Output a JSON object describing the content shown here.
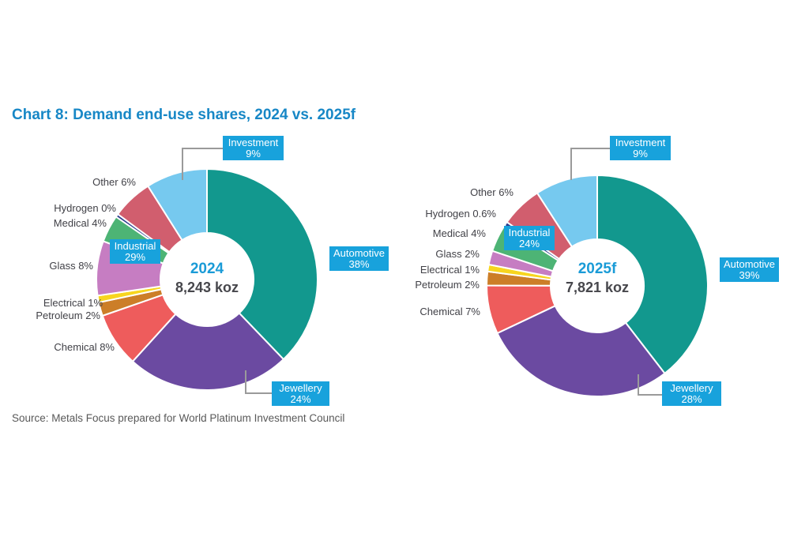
{
  "title": "Chart 8: Demand end-use shares, 2024 vs. 2025f",
  "source": "Source: Metals Focus prepared for World Platinum Investment Council",
  "colors": {
    "title": "#1787c6",
    "label_box": "#18a2dc",
    "year_text": "#1a9bd7",
    "dark_text": "#47474c",
    "plain_label_text": "#414147",
    "source_text": "#595959",
    "leader_line": "#9a9a9a",
    "slice_border": "#ffffff"
  },
  "chart_data": [
    {
      "type": "pie",
      "title": "2024",
      "center_title": "2024",
      "center_value": "8,243 koz",
      "legend_position": "callout-labels",
      "slices": [
        {
          "name": "Automotive",
          "value": 38,
          "label": "Automotive",
          "pct_label": "38%",
          "color": "#12988e",
          "label_style": "box"
        },
        {
          "name": "Jewellery",
          "value": 24,
          "label": "Jewellery",
          "pct_label": "24%",
          "color": "#6b4aa1",
          "label_style": "box"
        },
        {
          "name": "Chemical",
          "value": 8,
          "label": "Chemical 8%",
          "color": "#ee5c5c",
          "label_style": "text"
        },
        {
          "name": "Petroleum",
          "value": 2,
          "label": "Petroleum 2%",
          "color": "#cc7e28",
          "label_style": "text"
        },
        {
          "name": "Electrical",
          "value": 1,
          "label": "Electrical 1%",
          "color": "#f7d51f",
          "label_style": "text"
        },
        {
          "name": "Glass",
          "value": 8,
          "label": "Glass 8%",
          "color": "#c67dc2",
          "label_style": "text"
        },
        {
          "name": "Medical",
          "value": 4,
          "label": "Medical 4%",
          "color": "#4db475",
          "label_style": "text"
        },
        {
          "name": "Hydrogen",
          "value": 0,
          "plot": 0.45,
          "label": "Hydrogen 0%",
          "color": "#2c3e8e",
          "label_style": "text"
        },
        {
          "name": "Other",
          "value": 6,
          "label": "Other 6%",
          "color": "#d15e6e",
          "label_style": "text"
        },
        {
          "name": "Investment",
          "value": 9,
          "label": "Investment",
          "pct_label": "9%",
          "color": "#76c9ef",
          "label_style": "box"
        }
      ],
      "group_label": {
        "label": "Industrial",
        "pct_label": "29%"
      }
    },
    {
      "type": "pie",
      "title": "2025f",
      "center_title": "2025f",
      "center_value": "7,821 koz",
      "legend_position": "callout-labels",
      "slices": [
        {
          "name": "Automotive",
          "value": 39,
          "label": "Automotive",
          "pct_label": "39%",
          "color": "#12988e",
          "label_style": "box"
        },
        {
          "name": "Jewellery",
          "value": 28,
          "label": "Jewellery",
          "pct_label": "28%",
          "color": "#6b4aa1",
          "label_style": "box"
        },
        {
          "name": "Chemical",
          "value": 7,
          "label": "Chemical 7%",
          "color": "#ee5c5c",
          "label_style": "text"
        },
        {
          "name": "Petroleum",
          "value": 2,
          "label": "Petroleum 2%",
          "color": "#cc7e28",
          "label_style": "text"
        },
        {
          "name": "Electrical",
          "value": 1,
          "label": "Electrical 1%",
          "color": "#f7d51f",
          "label_style": "text"
        },
        {
          "name": "Glass",
          "value": 2,
          "label": "Glass 2%",
          "color": "#c67dc2",
          "label_style": "text"
        },
        {
          "name": "Medical",
          "value": 4,
          "label": "Medical 4%",
          "color": "#4db475",
          "label_style": "text"
        },
        {
          "name": "Hydrogen",
          "value": 0.6,
          "label": "Hydrogen 0.6%",
          "color": "#2c3e8e",
          "label_style": "text"
        },
        {
          "name": "Other",
          "value": 6,
          "label": "Other 6%",
          "color": "#d15e6e",
          "label_style": "text"
        },
        {
          "name": "Investment",
          "value": 9,
          "label": "Investment",
          "pct_label": "9%",
          "color": "#76c9ef",
          "label_style": "box"
        }
      ],
      "group_label": {
        "label": "Industrial",
        "pct_label": "24%"
      }
    }
  ]
}
